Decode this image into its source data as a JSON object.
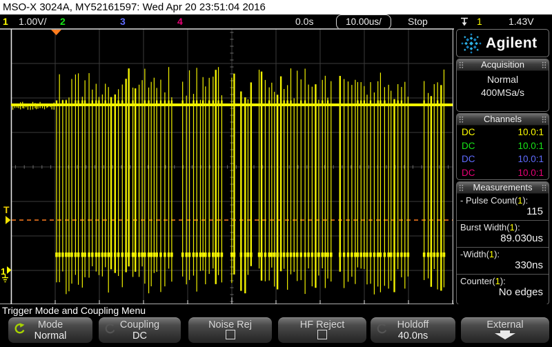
{
  "title_bar": {
    "text": "MSO-X 3024A, MY52161597: Wed Apr 20 23:51:04 2016"
  },
  "status_bar": {
    "ch1_label": "1",
    "ch1_scale": "1.00V/",
    "ch2_label": "2",
    "ch3_label": "3",
    "ch4_label": "4",
    "delay": "0.0s",
    "timebase": "10.00us/",
    "run_state": "Stop",
    "trigger_source": "1",
    "trigger_level": "1.43V"
  },
  "sidebar": {
    "brand": "Agilent",
    "acquisition": {
      "header": "Acquisition",
      "mode": "Normal",
      "sample_rate": "400MSa/s"
    },
    "channels": {
      "header": "Channels",
      "rows": [
        {
          "coupling": "DC",
          "probe": "10.0:1"
        },
        {
          "coupling": "DC",
          "probe": "10.0:1"
        },
        {
          "coupling": "DC",
          "probe": "10.0:1"
        },
        {
          "coupling": "DC",
          "probe": "10.0:1"
        }
      ]
    },
    "measurements": {
      "header": "Measurements",
      "rows": [
        {
          "name": "- Pulse Count",
          "open": "(",
          "chan": "1",
          "close": "):",
          "value": "115"
        },
        {
          "name": "Burst Width",
          "open": "(",
          "chan": "1",
          "close": "):",
          "value": "89.030us"
        },
        {
          "name": "-Width",
          "open": "(",
          "chan": "1",
          "close": "):",
          "value": "330ns"
        },
        {
          "name": "Counter",
          "open": "(",
          "chan": "1",
          "close": "):",
          "value": "No edges"
        }
      ]
    }
  },
  "plot": {
    "trigger_marker": "T",
    "ground_marker": "1"
  },
  "menu": {
    "status_text": "Trigger Mode and Coupling Menu",
    "softkeys": [
      {
        "label": "Mode",
        "value": "Normal"
      },
      {
        "label": "Coupling",
        "value": "DC"
      },
      {
        "label": "Noise Rej",
        "value": ""
      },
      {
        "label": "HF Reject",
        "value": ""
      },
      {
        "label": "Holdoff",
        "value": "40.0ns"
      },
      {
        "label": "External",
        "value": ""
      }
    ]
  },
  "icons": {
    "softkey_knob": "circular-arrow",
    "external_button": "down-arrow",
    "trigger_glyph": "falling-edge-trigger"
  },
  "colors": {
    "ch1": "#ffff00",
    "ch2": "#17e617",
    "ch3": "#5f6cff",
    "ch4": "#e80076",
    "trace": "#f2f200",
    "trigger_orange": "#ff7d1f",
    "brand_blue": "#2fb0e2",
    "grid": "#3c3c3c"
  }
}
